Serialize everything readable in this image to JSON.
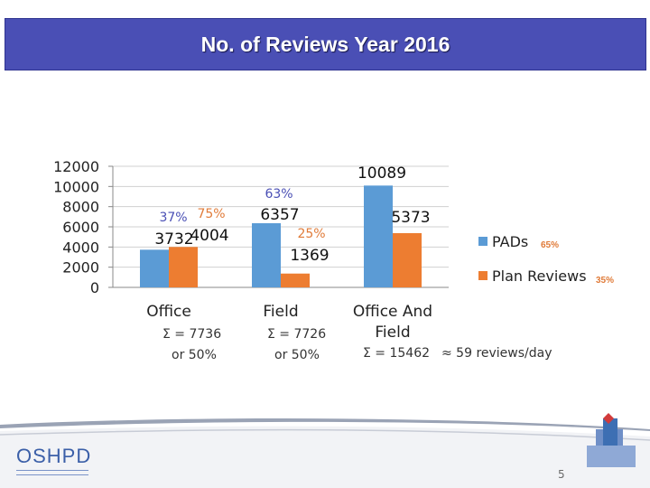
{
  "title": "No. of Reviews Year 2016",
  "colors": {
    "pads": "#5b9bd5",
    "plan_reviews": "#ed7d31",
    "title_bg": "#4a4fb5",
    "pct_blue": "#4a4fb5",
    "pct_orange": "#e07b39",
    "legend_pct_orange": "#e07b39",
    "grid": "#d0d0d0"
  },
  "chart_data": {
    "type": "bar",
    "categories": [
      "Office",
      "Field",
      "Office And Field"
    ],
    "series": [
      {
        "name": "PADs",
        "values": [
          3732,
          6357,
          10089
        ],
        "color": "#5b9bd5"
      },
      {
        "name": "Plan Reviews",
        "values": [
          4004,
          1369,
          5373
        ],
        "color": "#ed7d31"
      }
    ],
    "yticks": [
      "12000",
      "10000",
      "8000",
      "6000",
      "4000",
      "2000",
      "0"
    ],
    "ylim": [
      0,
      12000
    ],
    "grid": true,
    "legend_position": "right",
    "legend_pcts": [
      "65%",
      "35%"
    ],
    "annotations": {
      "office_pads_pct": "37%",
      "office_plan_pct": "75%",
      "field_pads_pct": "63%",
      "field_plan_pct": "25%"
    }
  },
  "summaries": {
    "office_sum": "Σ = 7736",
    "office_share": "or 50%",
    "field_sum": "Σ = 7726",
    "field_share": "or 50%",
    "total_sum": "Σ = 15462",
    "per_day": "≈ 59 reviews/day"
  },
  "footer": {
    "logo": "OSHPD",
    "page": "5"
  }
}
